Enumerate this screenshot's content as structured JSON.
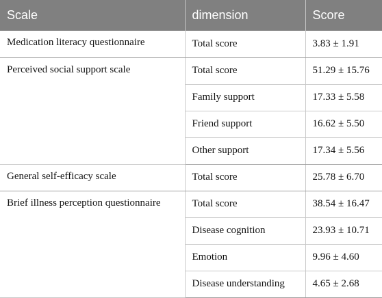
{
  "headers": {
    "scale": "Scale",
    "dimension": "dimension",
    "score": "Score"
  },
  "groups": [
    {
      "scale": "Medication literacy questionnaire",
      "rows": [
        {
          "dimension": "Total score",
          "score": "3.83 ± 1.91"
        }
      ]
    },
    {
      "scale": "Perceived social support scale",
      "rows": [
        {
          "dimension": "Total score",
          "score": "51.29 ± 15.76"
        },
        {
          "dimension": "Family support",
          "score": "17.33 ± 5.58"
        },
        {
          "dimension": "Friend support",
          "score": "16.62 ± 5.50"
        },
        {
          "dimension": "Other support",
          "score": "17.34 ± 5.56"
        }
      ]
    },
    {
      "scale": "General self-efficacy scale",
      "rows": [
        {
          "dimension": "Total score",
          "score": "25.78 ± 6.70"
        }
      ]
    },
    {
      "scale": "Brief illness perception questionnaire",
      "rows": [
        {
          "dimension": "Total score",
          "score": "38.54 ± 16.47"
        },
        {
          "dimension": "Disease cognition",
          "score": "23.93 ± 10.71"
        },
        {
          "dimension": "Emotion",
          "score": "9.96 ± 4.60"
        },
        {
          "dimension": "Disease understanding",
          "score": "4.65 ± 2.68"
        }
      ]
    }
  ]
}
